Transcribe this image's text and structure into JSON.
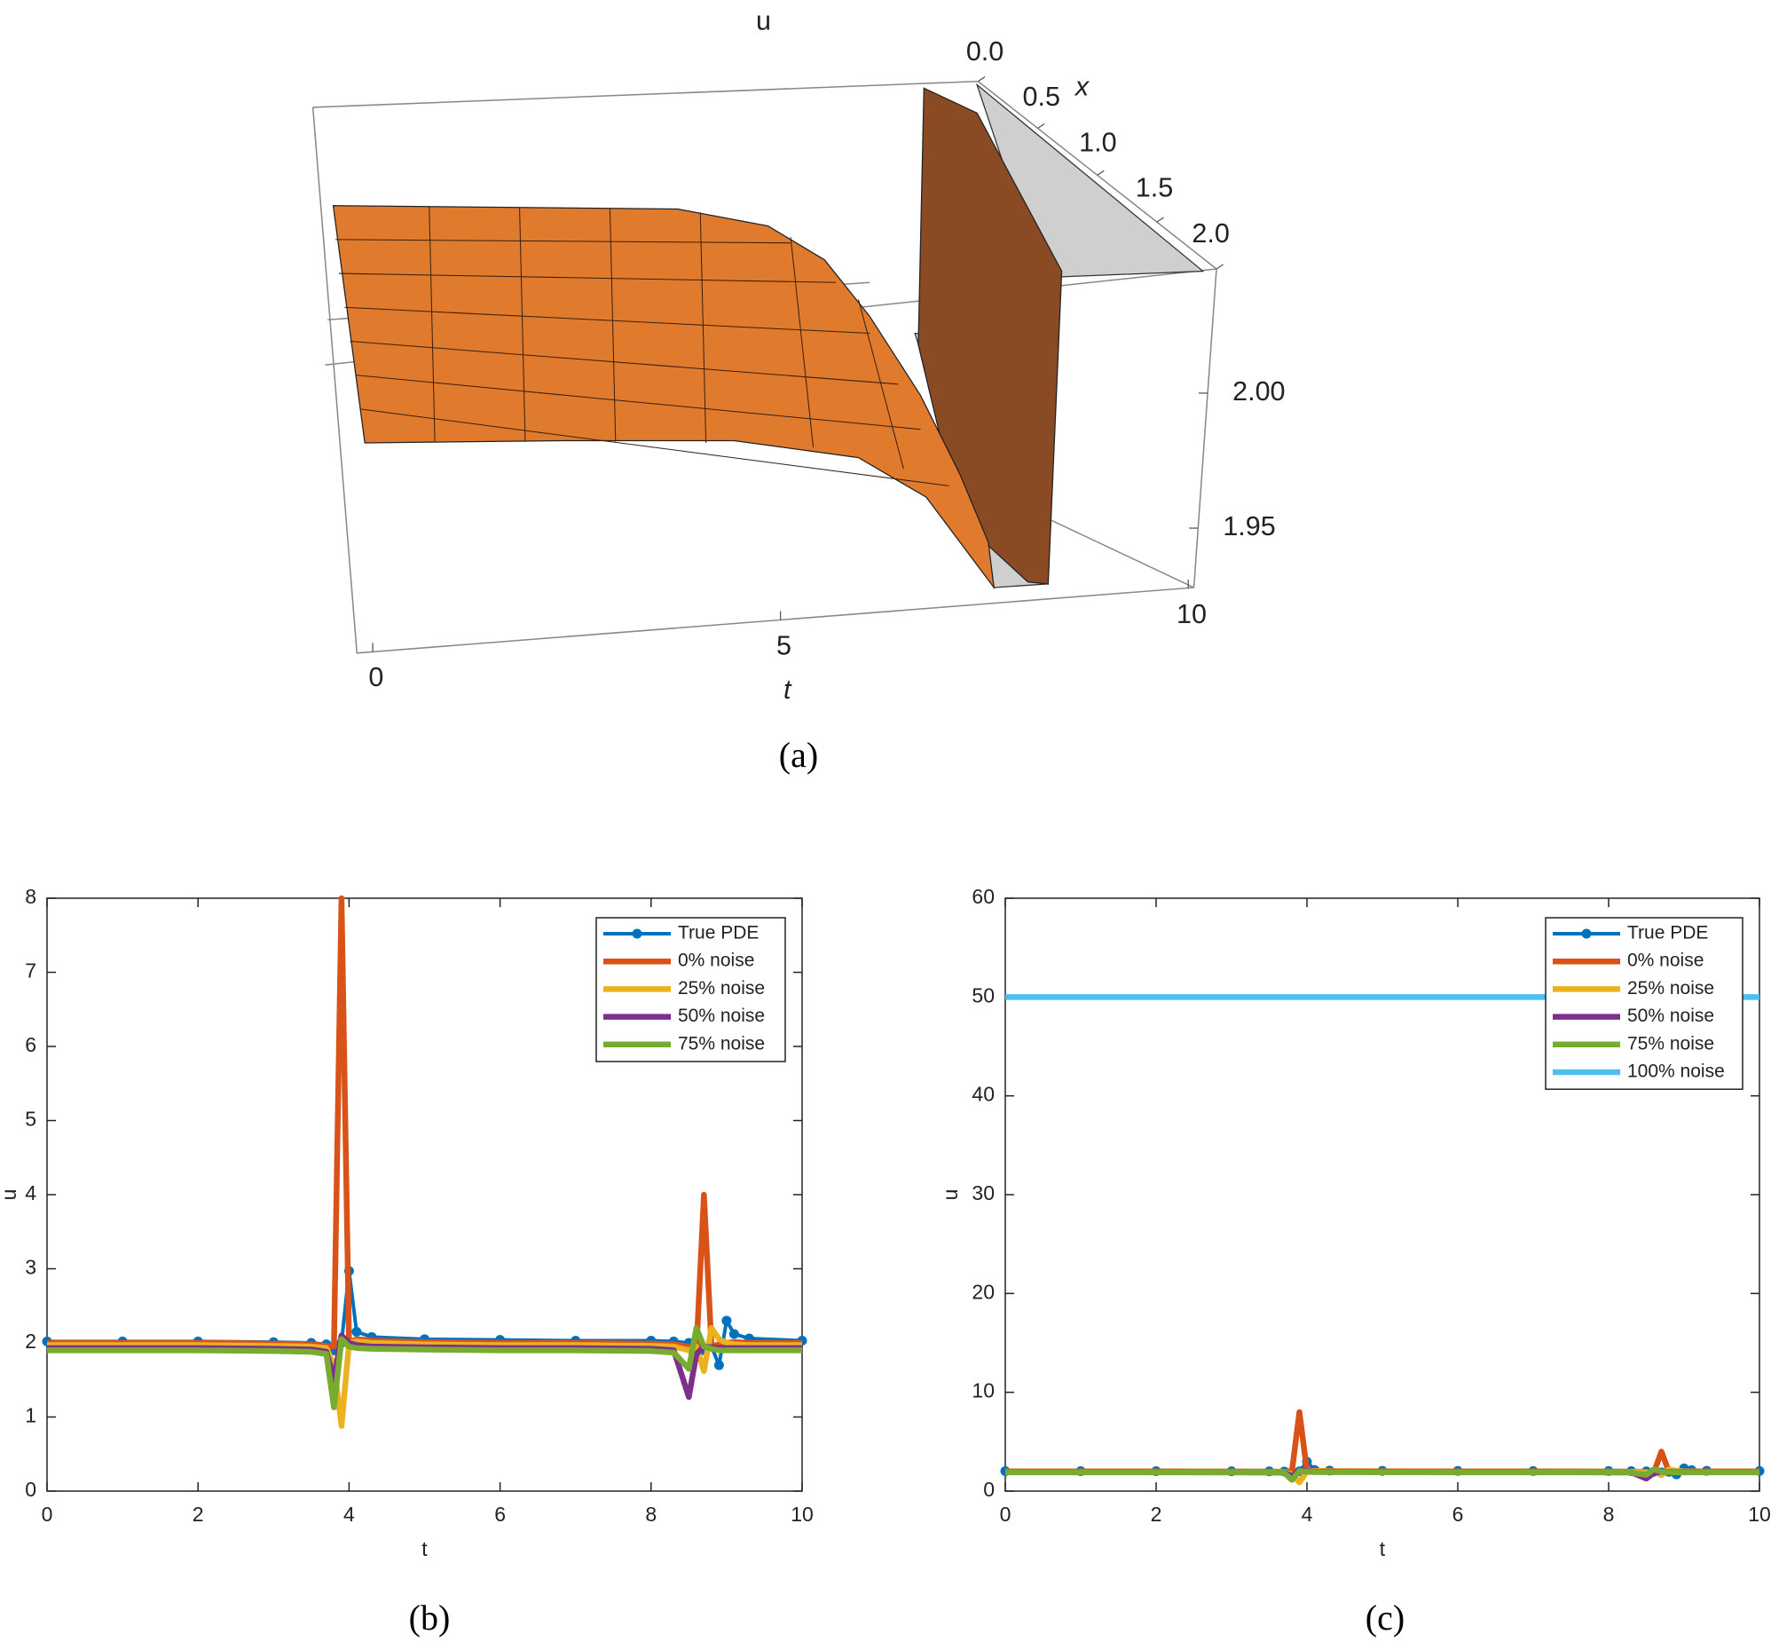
{
  "chart_data": [
    {
      "type": "surface",
      "title": "u",
      "caption": "(a)",
      "xlabel": "t",
      "ylabel": "x",
      "xlim": [
        0,
        10
      ],
      "xticks": [
        0,
        5,
        10
      ],
      "ylim": [
        0,
        2
      ],
      "yticks": [
        {
          "value": 0,
          "label": "0.0"
        },
        0.5,
        {
          "value": 1,
          "label": "1.0"
        },
        1.5,
        {
          "value": 2,
          "label": "2.0"
        }
      ],
      "zlim": [
        1.928,
        2.046
      ],
      "zticks": [
        1.95,
        {
          "value": 2,
          "label": "2.00"
        }
      ],
      "color": "#e07a2c"
    },
    {
      "type": "line",
      "caption": "(b)",
      "xlabel": "t",
      "ylabel": "u",
      "xlim": [
        0,
        10
      ],
      "xticks": [
        0,
        2,
        4,
        6,
        8,
        10
      ],
      "ylim": [
        0,
        8
      ],
      "yticks": [
        0,
        1,
        2,
        3,
        4,
        5,
        6,
        7,
        8
      ],
      "legend": "upper right",
      "x": [
        0,
        1,
        2,
        3,
        3.5,
        3.7,
        3.8,
        3.9,
        4.0,
        4.1,
        4.3,
        5,
        6,
        7,
        8,
        8.3,
        8.5,
        8.6,
        8.7,
        8.8,
        8.9,
        9.0,
        9.1,
        9.3,
        10
      ],
      "series": [
        {
          "name": "True PDE",
          "color": "#0072bd",
          "marker": "o",
          "values": [
            2.02,
            2.02,
            2.02,
            2.01,
            2.0,
            1.98,
            1.9,
            2.0,
            2.97,
            2.15,
            2.08,
            2.05,
            2.04,
            2.03,
            2.03,
            2.02,
            2.0,
            1.95,
            1.9,
            1.95,
            1.7,
            2.3,
            2.12,
            2.06,
            2.03
          ]
        },
        {
          "name": "0% noise",
          "color": "#d95319",
          "values": [
            2.0,
            2.0,
            2.0,
            1.99,
            1.98,
            1.96,
            1.95,
            8.0,
            2.0,
            2.05,
            2.03,
            2.01,
            2.0,
            2.0,
            1.99,
            1.98,
            1.95,
            1.9,
            4.0,
            1.95,
            1.98,
            2.0,
            2.01,
            2.0,
            2.0
          ]
        },
        {
          "name": "25% noise",
          "color": "#edb120",
          "values": [
            1.97,
            1.97,
            1.97,
            1.96,
            1.95,
            1.93,
            1.7,
            0.88,
            2.0,
            2.02,
            2.0,
            1.98,
            1.97,
            1.97,
            1.96,
            1.95,
            1.9,
            1.95,
            1.62,
            2.2,
            2.05,
            2.0,
            1.98,
            1.97,
            1.97
          ]
        },
        {
          "name": "50% noise",
          "color": "#7e2f8e",
          "values": [
            1.93,
            1.93,
            1.93,
            1.92,
            1.91,
            1.88,
            1.5,
            2.1,
            2.0,
            1.97,
            1.95,
            1.94,
            1.93,
            1.93,
            1.92,
            1.9,
            1.27,
            1.85,
            1.95,
            1.94,
            1.93,
            1.93,
            1.93,
            1.93,
            1.93
          ]
        },
        {
          "name": "75% noise",
          "color": "#77ac30",
          "values": [
            1.9,
            1.9,
            1.9,
            1.89,
            1.88,
            1.85,
            1.13,
            2.05,
            1.95,
            1.93,
            1.92,
            1.91,
            1.9,
            1.9,
            1.89,
            1.87,
            1.65,
            2.2,
            1.95,
            1.92,
            1.9,
            1.9,
            1.9,
            1.9,
            1.9
          ]
        }
      ]
    },
    {
      "type": "line",
      "caption": "(c)",
      "xlabel": "t",
      "ylabel": "u",
      "xlim": [
        0,
        10
      ],
      "xticks": [
        0,
        2,
        4,
        6,
        8,
        10
      ],
      "ylim": [
        0,
        60
      ],
      "yticks": [
        0,
        10,
        20,
        30,
        40,
        50,
        60
      ],
      "legend": "upper right",
      "x": [
        0,
        1,
        2,
        3,
        3.5,
        3.7,
        3.8,
        3.9,
        4.0,
        4.1,
        4.3,
        5,
        6,
        7,
        8,
        8.3,
        8.5,
        8.6,
        8.7,
        8.8,
        8.9,
        9.0,
        9.1,
        9.3,
        10
      ],
      "series": [
        {
          "name": "True PDE",
          "color": "#0072bd",
          "marker": "o",
          "values": [
            2.02,
            2.02,
            2.02,
            2.01,
            2.0,
            1.98,
            1.9,
            2.0,
            2.97,
            2.15,
            2.08,
            2.05,
            2.04,
            2.03,
            2.03,
            2.02,
            2.0,
            1.95,
            1.9,
            1.95,
            1.7,
            2.3,
            2.12,
            2.06,
            2.03
          ]
        },
        {
          "name": "0% noise",
          "color": "#d95319",
          "values": [
            2.0,
            2.0,
            2.0,
            1.99,
            1.98,
            1.96,
            1.95,
            8.0,
            2.0,
            2.05,
            2.03,
            2.01,
            2.0,
            2.0,
            1.99,
            1.98,
            1.95,
            1.9,
            4.0,
            1.95,
            1.98,
            2.0,
            2.01,
            2.0,
            2.0
          ]
        },
        {
          "name": "25% noise",
          "color": "#edb120",
          "values": [
            1.97,
            1.97,
            1.97,
            1.96,
            1.95,
            1.93,
            1.7,
            0.88,
            2.0,
            2.02,
            2.0,
            1.98,
            1.97,
            1.97,
            1.96,
            1.95,
            1.9,
            1.95,
            1.62,
            2.2,
            2.05,
            2.0,
            1.98,
            1.97,
            1.97
          ]
        },
        {
          "name": "50% noise",
          "color": "#7e2f8e",
          "values": [
            1.93,
            1.93,
            1.93,
            1.92,
            1.91,
            1.88,
            1.5,
            2.1,
            2.0,
            1.97,
            1.95,
            1.94,
            1.93,
            1.93,
            1.92,
            1.9,
            1.27,
            1.85,
            1.95,
            1.94,
            1.93,
            1.93,
            1.93,
            1.93,
            1.93
          ]
        },
        {
          "name": "75% noise",
          "color": "#77ac30",
          "values": [
            1.9,
            1.9,
            1.9,
            1.89,
            1.88,
            1.85,
            1.13,
            2.05,
            1.95,
            1.93,
            1.92,
            1.91,
            1.9,
            1.9,
            1.89,
            1.87,
            1.65,
            2.2,
            1.95,
            1.92,
            1.9,
            1.9,
            1.9,
            1.9,
            1.9
          ]
        },
        {
          "name": "100% noise",
          "color": "#4dbeee",
          "values": [
            50,
            50,
            50,
            50,
            50,
            50,
            50,
            50,
            50,
            50,
            50,
            50,
            50,
            50,
            50,
            50,
            50,
            50,
            50,
            50,
            50,
            50,
            50,
            50,
            50
          ]
        }
      ]
    }
  ]
}
